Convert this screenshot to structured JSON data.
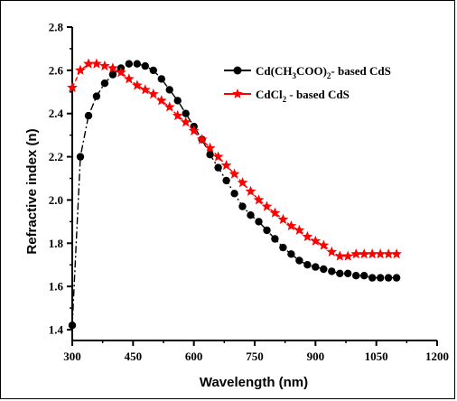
{
  "chart_data": {
    "type": "line",
    "title": "",
    "xlabel": "Wavelength (nm)",
    "ylabel": "Refractive index (n)",
    "xlim": [
      300,
      1200
    ],
    "ylim": [
      1.35,
      2.8
    ],
    "x_ticks": [
      300,
      450,
      600,
      750,
      900,
      1050,
      1200
    ],
    "y_ticks": [
      1.4,
      1.6,
      1.8,
      2.0,
      2.2,
      2.4,
      2.6,
      2.8
    ],
    "x_tick_labels": [
      "300",
      "450",
      "600",
      "750",
      "900",
      "1050",
      "1200"
    ],
    "y_tick_labels": [
      "1.4",
      "1.6",
      "1.8",
      "2.0",
      "2.2",
      "2.4",
      "2.6",
      "2.8"
    ],
    "grid": false,
    "legend_position": "top-right",
    "series": [
      {
        "name": "Cd(CH3COO)2- based CdS",
        "legend_parts": {
          "a": "Cd(CH",
          "sub1": "3",
          "b": "COO)",
          "sub2": "2",
          "c": "- based CdS"
        },
        "color": "#000000",
        "marker": "circle",
        "line_style": "dashdot",
        "x": [
          300,
          320,
          340,
          360,
          380,
          400,
          420,
          440,
          460,
          480,
          500,
          520,
          540,
          560,
          580,
          600,
          620,
          640,
          660,
          680,
          700,
          720,
          740,
          760,
          780,
          800,
          820,
          840,
          860,
          880,
          900,
          920,
          940,
          960,
          980,
          1000,
          1020,
          1040,
          1060,
          1080,
          1100
        ],
        "y": [
          1.42,
          2.2,
          2.39,
          2.48,
          2.54,
          2.58,
          2.61,
          2.63,
          2.63,
          2.62,
          2.6,
          2.56,
          2.51,
          2.46,
          2.4,
          2.34,
          2.28,
          2.21,
          2.15,
          2.09,
          2.03,
          1.97,
          1.93,
          1.9,
          1.86,
          1.82,
          1.78,
          1.75,
          1.72,
          1.7,
          1.69,
          1.68,
          1.67,
          1.66,
          1.66,
          1.65,
          1.65,
          1.64,
          1.64,
          1.64,
          1.64
        ]
      },
      {
        "name": "CdCl2 - based CdS",
        "legend_parts": {
          "a": "CdCl",
          "sub1": "2",
          "b": " - based CdS"
        },
        "color": "#ff0000",
        "marker": "star",
        "line_style": "dashed",
        "x": [
          300,
          320,
          340,
          360,
          380,
          400,
          420,
          440,
          460,
          480,
          500,
          520,
          540,
          560,
          580,
          600,
          620,
          640,
          660,
          680,
          700,
          720,
          740,
          760,
          780,
          800,
          820,
          840,
          860,
          880,
          900,
          920,
          940,
          960,
          980,
          1000,
          1020,
          1040,
          1060,
          1080,
          1100
        ],
        "y": [
          2.52,
          2.6,
          2.63,
          2.63,
          2.62,
          2.61,
          2.59,
          2.56,
          2.53,
          2.51,
          2.49,
          2.46,
          2.43,
          2.39,
          2.36,
          2.32,
          2.28,
          2.24,
          2.2,
          2.16,
          2.12,
          2.08,
          2.04,
          2.0,
          1.97,
          1.94,
          1.91,
          1.88,
          1.86,
          1.83,
          1.81,
          1.79,
          1.76,
          1.74,
          1.74,
          1.75,
          1.75,
          1.75,
          1.75,
          1.75,
          1.75
        ]
      }
    ]
  }
}
